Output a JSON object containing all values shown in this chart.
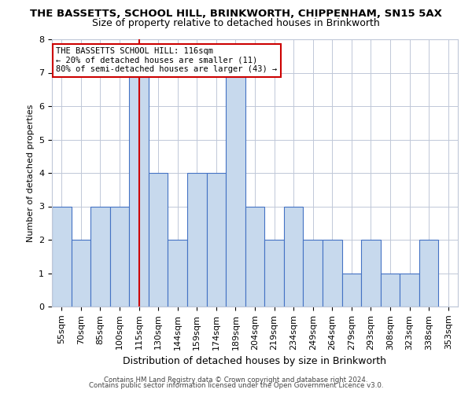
{
  "title": "THE BASSETTS, SCHOOL HILL, BRINKWORTH, CHIPPENHAM, SN15 5AX",
  "subtitle": "Size of property relative to detached houses in Brinkworth",
  "xlabel": "Distribution of detached houses by size in Brinkworth",
  "ylabel": "Number of detached properties",
  "categories": [
    "55sqm",
    "70sqm",
    "85sqm",
    "100sqm",
    "115sqm",
    "130sqm",
    "144sqm",
    "159sqm",
    "174sqm",
    "189sqm",
    "204sqm",
    "219sqm",
    "234sqm",
    "249sqm",
    "264sqm",
    "279sqm",
    "293sqm",
    "308sqm",
    "323sqm",
    "338sqm",
    "353sqm"
  ],
  "values": [
    3,
    2,
    3,
    3,
    7,
    4,
    2,
    4,
    4,
    7,
    3,
    2,
    3,
    2,
    2,
    1,
    2,
    1,
    1,
    2,
    0
  ],
  "bar_color": "#c7d9ed",
  "bar_edge_color": "#4472c4",
  "highlight_index": 4,
  "highlight_line_color": "#cc0000",
  "ylim": [
    0,
    8
  ],
  "yticks": [
    0,
    1,
    2,
    3,
    4,
    5,
    6,
    7,
    8
  ],
  "annotation_text": "THE BASSETTS SCHOOL HILL: 116sqm\n← 20% of detached houses are smaller (11)\n80% of semi-detached houses are larger (43) →",
  "annotation_box_color": "#ffffff",
  "annotation_box_edge_color": "#cc0000",
  "footer_line1": "Contains HM Land Registry data © Crown copyright and database right 2024.",
  "footer_line2": "Contains public sector information licensed under the Open Government Licence v3.0.",
  "background_color": "#ffffff",
  "grid_color": "#c0c8d8",
  "title_fontsize": 9.5,
  "subtitle_fontsize": 9,
  "ylabel_fontsize": 8,
  "xlabel_fontsize": 9,
  "tick_fontsize": 8,
  "annotation_fontsize": 7.5,
  "footer_fontsize": 6.2
}
